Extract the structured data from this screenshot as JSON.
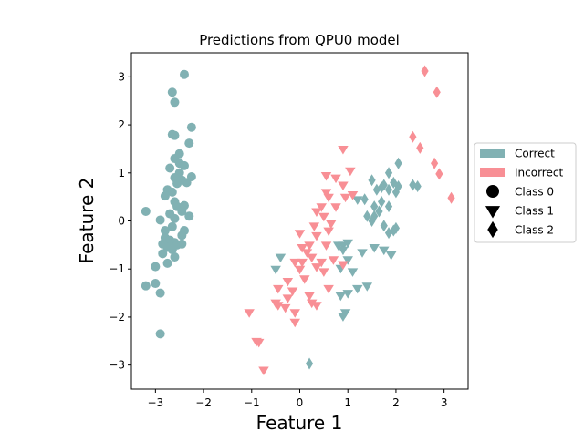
{
  "chart_data": {
    "type": "scatter",
    "title": "Predictions from QPU0 model",
    "xlabel": "Feature 1",
    "ylabel": "Feature 2",
    "xlim": [
      -3.5,
      3.5
    ],
    "ylim": [
      -3.5,
      3.5
    ],
    "xticks": [
      -3,
      -2,
      -1,
      0,
      1,
      2,
      3
    ],
    "yticks": [
      -3,
      -2,
      -1,
      0,
      1,
      2,
      3
    ],
    "grid": false,
    "legend_position": "right, outside plot",
    "colors": {
      "correct": "#81b1b3",
      "incorrect": "#f88f95",
      "legend_marker": "#000000"
    },
    "legend": [
      {
        "label": "Correct",
        "kind": "patch",
        "color_key": "correct"
      },
      {
        "label": "Incorrect",
        "kind": "patch",
        "color_key": "incorrect"
      },
      {
        "label": "Class 0",
        "kind": "marker",
        "shape": "circle"
      },
      {
        "label": "Class 1",
        "kind": "marker",
        "shape": "triangle-down"
      },
      {
        "label": "Class 2",
        "kind": "marker",
        "shape": "diamond"
      }
    ],
    "series": [
      {
        "class": "Class 0",
        "shape": "circle",
        "status": "correct",
        "points": [
          [
            -2.4,
            3.05
          ],
          [
            -2.65,
            2.68
          ],
          [
            -2.6,
            2.47
          ],
          [
            -2.25,
            1.95
          ],
          [
            -2.65,
            1.8
          ],
          [
            -2.6,
            1.78
          ],
          [
            -2.3,
            1.62
          ],
          [
            -2.5,
            1.4
          ],
          [
            -2.6,
            1.3
          ],
          [
            -2.5,
            1.2
          ],
          [
            -2.4,
            1.15
          ],
          [
            -2.7,
            1.1
          ],
          [
            -2.5,
            1.0
          ],
          [
            -2.6,
            0.9
          ],
          [
            -2.25,
            0.92
          ],
          [
            -2.45,
            0.85
          ],
          [
            -2.35,
            0.8
          ],
          [
            -2.55,
            0.78
          ],
          [
            -2.75,
            0.65
          ],
          [
            -2.65,
            0.6
          ],
          [
            -2.8,
            0.52
          ],
          [
            -2.6,
            0.4
          ],
          [
            -2.55,
            0.3
          ],
          [
            -2.4,
            0.32
          ],
          [
            -2.45,
            0.2
          ],
          [
            -2.7,
            0.15
          ],
          [
            -2.6,
            0.05
          ],
          [
            -2.9,
            0.02
          ],
          [
            -2.3,
            0.1
          ],
          [
            -3.2,
            0.2
          ],
          [
            -2.65,
            -0.12
          ],
          [
            -2.8,
            -0.2
          ],
          [
            -2.4,
            -0.2
          ],
          [
            -2.45,
            -0.3
          ],
          [
            -2.8,
            -0.35
          ],
          [
            -2.7,
            -0.4
          ],
          [
            -2.85,
            -0.48
          ],
          [
            -2.6,
            -0.45
          ],
          [
            -2.55,
            -0.5
          ],
          [
            -2.75,
            -0.55
          ],
          [
            -2.45,
            -0.48
          ],
          [
            -2.65,
            -0.6
          ],
          [
            -2.85,
            -0.68
          ],
          [
            -2.6,
            -0.75
          ],
          [
            -2.75,
            -0.88
          ],
          [
            -3.0,
            -0.95
          ],
          [
            -3.2,
            -1.35
          ],
          [
            -3.0,
            -1.3
          ],
          [
            -2.9,
            -1.5
          ],
          [
            -2.9,
            -2.35
          ]
        ]
      },
      {
        "class": "Class 1",
        "shape": "triangle-down",
        "status": "correct",
        "points": [
          [
            -0.4,
            -0.75
          ],
          [
            -0.5,
            -1.0
          ],
          [
            1.2,
            0.45
          ],
          [
            0.8,
            -0.5
          ],
          [
            0.9,
            -0.5
          ],
          [
            1.0,
            -0.45
          ],
          [
            0.9,
            -0.6
          ],
          [
            1.0,
            -0.8
          ],
          [
            0.85,
            -0.98
          ],
          [
            1.1,
            -1.05
          ],
          [
            1.3,
            -0.65
          ],
          [
            1.55,
            -0.55
          ],
          [
            1.75,
            -0.6
          ],
          [
            1.9,
            -0.7
          ],
          [
            1.2,
            -1.4
          ],
          [
            1.4,
            -1.35
          ],
          [
            1.0,
            -1.5
          ],
          [
            0.85,
            -1.55
          ],
          [
            0.95,
            -1.9
          ],
          [
            0.9,
            -1.98
          ]
        ]
      },
      {
        "class": "Class 1",
        "shape": "triangle-down",
        "status": "incorrect",
        "points": [
          [
            0.9,
            1.5
          ],
          [
            1.05,
            1.05
          ],
          [
            0.55,
            0.95
          ],
          [
            0.75,
            0.9
          ],
          [
            0.9,
            0.75
          ],
          [
            0.55,
            0.6
          ],
          [
            0.6,
            0.5
          ],
          [
            0.45,
            0.3
          ],
          [
            0.35,
            0.2
          ],
          [
            1.1,
            0.55
          ],
          [
            0.95,
            0.5
          ],
          [
            0.75,
            0.3
          ],
          [
            0.5,
            0.1
          ],
          [
            0.3,
            -0.1
          ],
          [
            0.65,
            -0.05
          ],
          [
            0.35,
            -0.3
          ],
          [
            0.2,
            -0.5
          ],
          [
            0.55,
            -0.5
          ],
          [
            0.6,
            -0.2
          ],
          [
            0.0,
            -0.25
          ],
          [
            0.05,
            -0.55
          ],
          [
            0.15,
            -0.65
          ],
          [
            0.25,
            -0.75
          ],
          [
            0.7,
            -0.8
          ],
          [
            0.45,
            -0.85
          ],
          [
            0.9,
            -0.9
          ],
          [
            0.05,
            -0.85
          ],
          [
            -0.1,
            -0.85
          ],
          [
            0.0,
            -1.0
          ],
          [
            0.1,
            -1.2
          ],
          [
            0.35,
            -0.95
          ],
          [
            0.5,
            -1.05
          ],
          [
            -0.25,
            -1.25
          ],
          [
            -0.45,
            -1.4
          ],
          [
            -0.15,
            -1.45
          ],
          [
            -0.25,
            -1.6
          ],
          [
            0.2,
            -1.55
          ],
          [
            0.25,
            -1.7
          ],
          [
            0.6,
            -1.4
          ],
          [
            -0.5,
            -1.7
          ],
          [
            -0.45,
            -1.75
          ],
          [
            -0.3,
            -1.8
          ],
          [
            -0.1,
            -1.9
          ],
          [
            0.35,
            -1.75
          ],
          [
            -1.05,
            -1.9
          ],
          [
            -0.1,
            -2.1
          ],
          [
            -0.9,
            -2.5
          ],
          [
            -0.85,
            -2.52
          ],
          [
            -0.75,
            -3.1
          ]
        ]
      },
      {
        "class": "Class 2",
        "shape": "diamond",
        "status": "correct",
        "points": [
          [
            1.85,
            1.0
          ],
          [
            2.05,
            1.2
          ],
          [
            1.5,
            0.85
          ],
          [
            1.75,
            0.75
          ],
          [
            1.95,
            0.8
          ],
          [
            2.35,
            0.75
          ],
          [
            2.45,
            0.72
          ],
          [
            1.6,
            0.65
          ],
          [
            1.7,
            0.7
          ],
          [
            1.85,
            0.65
          ],
          [
            2.0,
            0.6
          ],
          [
            2.05,
            0.72
          ],
          [
            1.35,
            0.45
          ],
          [
            1.55,
            0.3
          ],
          [
            1.7,
            0.4
          ],
          [
            1.85,
            0.3
          ],
          [
            1.4,
            0.1
          ],
          [
            1.55,
            0.1
          ],
          [
            1.5,
            0.0
          ],
          [
            1.65,
            0.2
          ],
          [
            1.75,
            -0.1
          ],
          [
            2.0,
            -0.15
          ],
          [
            1.85,
            -0.25
          ],
          [
            1.95,
            -0.2
          ],
          [
            0.2,
            -2.97
          ]
        ]
      },
      {
        "class": "Class 2",
        "shape": "diamond",
        "status": "incorrect",
        "points": [
          [
            2.6,
            3.12
          ],
          [
            2.85,
            2.68
          ],
          [
            2.35,
            1.75
          ],
          [
            2.5,
            1.52
          ],
          [
            2.8,
            1.2
          ],
          [
            2.9,
            0.98
          ],
          [
            3.15,
            0.48
          ]
        ]
      }
    ]
  }
}
